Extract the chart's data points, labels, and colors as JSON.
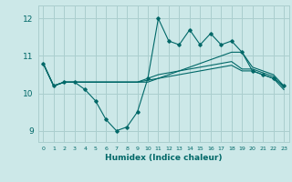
{
  "title": "",
  "xlabel": "Humidex (Indice chaleur)",
  "ylabel": "",
  "bg_color": "#cce8e8",
  "grid_color": "#aacece",
  "line_color": "#006868",
  "xlim": [
    -0.5,
    23.5
  ],
  "ylim": [
    8.7,
    12.35
  ],
  "yticks": [
    9,
    10,
    11,
    12
  ],
  "xticks": [
    0,
    1,
    2,
    3,
    4,
    5,
    6,
    7,
    8,
    9,
    10,
    11,
    12,
    13,
    14,
    15,
    16,
    17,
    18,
    19,
    20,
    21,
    22,
    23
  ],
  "series": [
    [
      10.8,
      10.2,
      10.3,
      10.3,
      10.1,
      9.8,
      9.3,
      9.0,
      9.1,
      9.5,
      10.4,
      12.0,
      11.4,
      11.3,
      11.7,
      11.3,
      11.6,
      11.3,
      11.4,
      11.1,
      10.6,
      10.5,
      10.4,
      10.2
    ],
    [
      10.8,
      10.2,
      10.3,
      10.3,
      10.3,
      10.3,
      10.3,
      10.3,
      10.3,
      10.3,
      10.3,
      10.4,
      10.5,
      10.6,
      10.7,
      10.8,
      10.9,
      11.0,
      11.1,
      11.1,
      10.7,
      10.6,
      10.5,
      10.2
    ],
    [
      10.8,
      10.2,
      10.3,
      10.3,
      10.3,
      10.3,
      10.3,
      10.3,
      10.3,
      10.3,
      10.4,
      10.5,
      10.55,
      10.6,
      10.65,
      10.7,
      10.75,
      10.8,
      10.85,
      10.65,
      10.65,
      10.55,
      10.45,
      10.15
    ],
    [
      10.8,
      10.2,
      10.3,
      10.3,
      10.3,
      10.3,
      10.3,
      10.3,
      10.3,
      10.3,
      10.35,
      10.4,
      10.45,
      10.5,
      10.55,
      10.6,
      10.65,
      10.7,
      10.75,
      10.6,
      10.6,
      10.5,
      10.4,
      10.1
    ]
  ]
}
